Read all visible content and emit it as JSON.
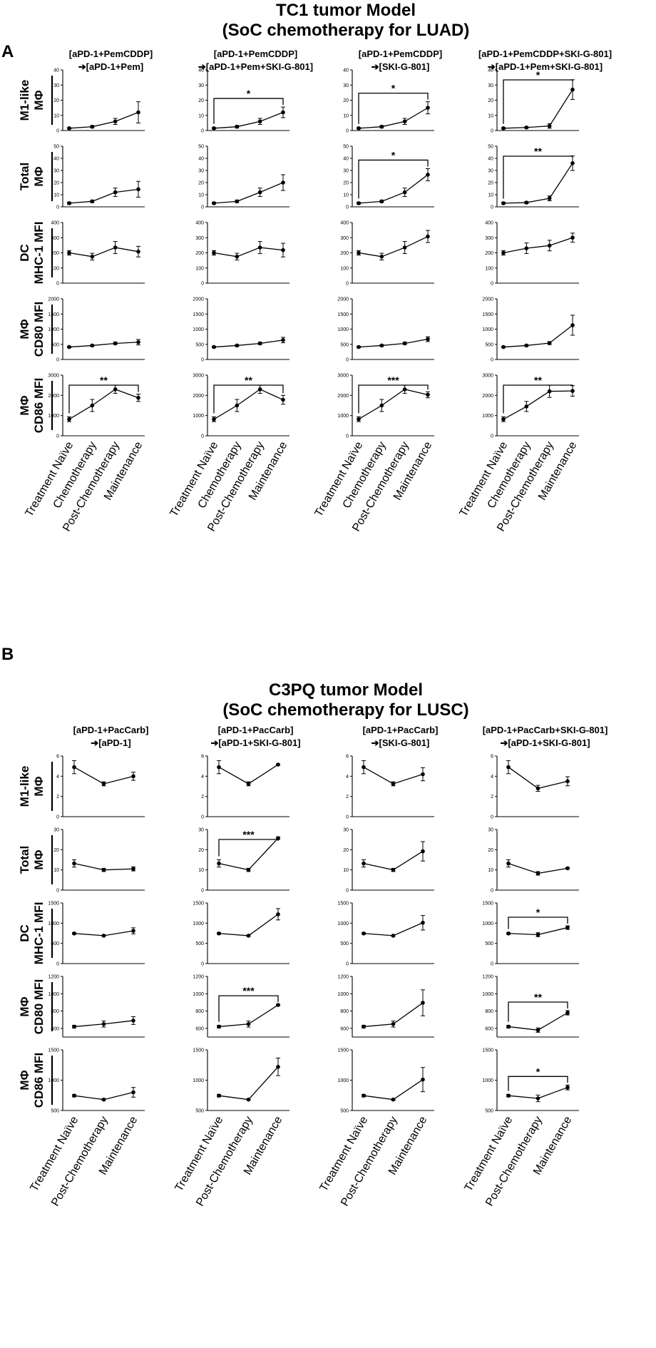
{
  "colors": {
    "line": "#000000",
    "background": "#ffffff"
  },
  "chart_data": [
    {
      "panel": "A",
      "title": "TC1 tumor Model",
      "subtitle": "(SoC chemotherapy for LUAD)",
      "type": "line",
      "categories": [
        "Treatment Naïve",
        "Chemotherapy",
        "Post-Chemotherapy",
        "Maintenance"
      ],
      "columns": [
        {
          "line1": "[aPD-1+PemCDDP]",
          "line2": "➔[aPD-1+Pem]"
        },
        {
          "line1": "[aPD-1+PemCDDP]",
          "line2": "➔[aPD-1+Pem+SKI-G-801]"
        },
        {
          "line1": "[aPD-1+PemCDDP]",
          "line2": "➔[SKI-G-801]"
        },
        {
          "line1": "[aPD-1+PemCDDP+SKI-G-801]",
          "line2": "➔[aPD-1+Pem+SKI-G-801]"
        }
      ],
      "rows": [
        {
          "ylabel1": "M1-like",
          "ylabel2": "MΦ",
          "ylim": [
            0,
            40
          ],
          "ticks": [
            "0",
            "10",
            "20",
            "30",
            "40"
          ],
          "series": [
            {
              "values": [
                1.5,
                2.5,
                6,
                12
              ],
              "errors": [
                0.5,
                0.8,
                2,
                7
              ],
              "sig": ""
            },
            {
              "values": [
                1.5,
                2.5,
                6,
                12
              ],
              "errors": [
                0.5,
                0.8,
                2,
                3.5
              ],
              "sig": "*"
            },
            {
              "values": [
                1.5,
                2.5,
                6,
                15
              ],
              "errors": [
                0.5,
                0.8,
                2,
                4
              ],
              "sig": "*"
            },
            {
              "values": [
                1.5,
                2,
                3,
                27
              ],
              "errors": [
                0.5,
                0.5,
                1.5,
                6.5
              ],
              "sig": "*"
            }
          ]
        },
        {
          "ylabel1": "Total",
          "ylabel2": "MΦ",
          "ylim": [
            0,
            50
          ],
          "ticks": [
            "0",
            "10",
            "20",
            "30",
            "40",
            "50"
          ],
          "series": [
            {
              "values": [
                3,
                4.5,
                12,
                14.5
              ],
              "errors": [
                0.8,
                1,
                3.5,
                6.5
              ],
              "sig": ""
            },
            {
              "values": [
                3,
                4.5,
                12,
                20
              ],
              "errors": [
                0.8,
                1,
                3.5,
                6.5
              ],
              "sig": ""
            },
            {
              "values": [
                3,
                4.5,
                12,
                26.5
              ],
              "errors": [
                0.8,
                1,
                3.5,
                5
              ],
              "sig": "*"
            },
            {
              "values": [
                3,
                3.5,
                7,
                36
              ],
              "errors": [
                0.8,
                0.8,
                2,
                6
              ],
              "sig": "**"
            }
          ]
        },
        {
          "ylabel1": "DC",
          "ylabel2": "MHC-1 MFI",
          "ylim": [
            0,
            400
          ],
          "ticks": [
            "0",
            "100",
            "200",
            "300",
            "400"
          ],
          "series": [
            {
              "values": [
                200,
                175,
                235,
                208
              ],
              "errors": [
                15,
                22,
                40,
                35
              ],
              "sig": ""
            },
            {
              "values": [
                200,
                175,
                235,
                218
              ],
              "errors": [
                15,
                22,
                40,
                45
              ],
              "sig": ""
            },
            {
              "values": [
                200,
                175,
                235,
                308
              ],
              "errors": [
                15,
                22,
                40,
                40
              ],
              "sig": ""
            },
            {
              "values": [
                200,
                230,
                248,
                300
              ],
              "errors": [
                15,
                35,
                35,
                30
              ],
              "sig": ""
            }
          ]
        },
        {
          "ylabel1": "MΦ",
          "ylabel2": "CD80 MFI",
          "ylim": [
            0,
            2000
          ],
          "ticks": [
            "0",
            "500",
            "1000",
            "1500",
            "2000"
          ],
          "series": [
            {
              "values": [
                410,
                460,
                530,
                570
              ],
              "errors": [
                25,
                30,
                40,
                90
              ],
              "sig": ""
            },
            {
              "values": [
                410,
                460,
                530,
                640
              ],
              "errors": [
                25,
                30,
                40,
                90
              ],
              "sig": ""
            },
            {
              "values": [
                410,
                460,
                530,
                670
              ],
              "errors": [
                25,
                30,
                40,
                80
              ],
              "sig": ""
            },
            {
              "values": [
                410,
                460,
                540,
                1130
              ],
              "errors": [
                25,
                30,
                50,
                330
              ],
              "sig": ""
            }
          ]
        },
        {
          "ylabel1": "MΦ",
          "ylabel2": "CD86 MFI",
          "ylim": [
            0,
            3000
          ],
          "ticks": [
            "0",
            "1000",
            "2000",
            "3000"
          ],
          "series": [
            {
              "values": [
                820,
                1500,
                2300,
                1880
              ],
              "errors": [
                120,
                300,
                200,
                180
              ],
              "sig": "**"
            },
            {
              "values": [
                820,
                1500,
                2300,
                1780
              ],
              "errors": [
                120,
                300,
                200,
                220
              ],
              "sig": "**"
            },
            {
              "values": [
                820,
                1500,
                2300,
                2030
              ],
              "errors": [
                120,
                300,
                200,
                150
              ],
              "sig": "***"
            },
            {
              "values": [
                820,
                1450,
                2200,
                2220
              ],
              "errors": [
                120,
                250,
                300,
                260
              ],
              "sig": "**"
            }
          ]
        }
      ]
    },
    {
      "panel": "B",
      "title": "C3PQ tumor Model",
      "subtitle": "(SoC chemotherapy for LUSC)",
      "type": "line",
      "categories": [
        "Treatment Naïve",
        "Post-Chemotherapy",
        "Maintenance"
      ],
      "columns": [
        {
          "line1": "[aPD-1+PacCarb]",
          "line2": "➔[aPD-1]"
        },
        {
          "line1": "[aPD-1+PacCarb]",
          "line2": "➔[aPD-1+SKI-G-801]"
        },
        {
          "line1": "[aPD-1+PacCarb]",
          "line2": "➔[SKI-G-801]"
        },
        {
          "line1": "[aPD-1+PacCarb+SKI-G-801]",
          "line2": "➔[aPD-1+SKI-G-801]"
        }
      ],
      "rows": [
        {
          "ylabel1": "M1-like",
          "ylabel2": "MΦ",
          "ylim": [
            0,
            6
          ],
          "ticks": [
            "0",
            "2",
            "4",
            "6"
          ],
          "series": [
            {
              "values": [
                4.9,
                3.25,
                4.0
              ],
              "errors": [
                0.65,
                0.2,
                0.4
              ],
              "sig": ""
            },
            {
              "values": [
                4.9,
                3.25,
                5.15
              ],
              "errors": [
                0.65,
                0.2,
                0.05
              ],
              "sig": ""
            },
            {
              "values": [
                4.9,
                3.25,
                4.2
              ],
              "errors": [
                0.65,
                0.2,
                0.65
              ],
              "sig": ""
            },
            {
              "values": [
                4.9,
                2.8,
                3.5
              ],
              "errors": [
                0.65,
                0.3,
                0.45
              ],
              "sig": ""
            }
          ]
        },
        {
          "ylabel1": "Total",
          "ylabel2": "MΦ",
          "ylim": [
            0,
            30
          ],
          "ticks": [
            "0",
            "10",
            "20",
            "30"
          ],
          "series": [
            {
              "values": [
                13.2,
                10,
                10.5
              ],
              "errors": [
                1.8,
                0.8,
                1.0
              ],
              "sig": ""
            },
            {
              "values": [
                13.2,
                10,
                25.7
              ],
              "errors": [
                1.8,
                0.8,
                0.6
              ],
              "sig": "***"
            },
            {
              "values": [
                13.2,
                10,
                19.2
              ],
              "errors": [
                1.8,
                0.8,
                4.8
              ],
              "sig": ""
            },
            {
              "values": [
                13.2,
                8.3,
                10.8
              ],
              "errors": [
                1.8,
                0.9,
                0.4
              ],
              "sig": ""
            }
          ]
        },
        {
          "ylabel1": "DC",
          "ylabel2": "MHC-1 MFI",
          "ylim": [
            0,
            1500
          ],
          "ticks": [
            "0",
            "500",
            "1000",
            "1500"
          ],
          "series": [
            {
              "values": [
                745,
                690,
                810
              ],
              "errors": [
                20,
                15,
                75
              ],
              "sig": ""
            },
            {
              "values": [
                745,
                690,
                1220
              ],
              "errors": [
                20,
                15,
                140
              ],
              "sig": ""
            },
            {
              "values": [
                745,
                690,
                1010
              ],
              "errors": [
                20,
                15,
                180
              ],
              "sig": ""
            },
            {
              "values": [
                745,
                715,
                890
              ],
              "errors": [
                20,
                50,
                45
              ],
              "sig": "*"
            }
          ]
        },
        {
          "ylabel1": "MΦ",
          "ylabel2": "CD80 MFI",
          "ylim": [
            500,
            1200
          ],
          "ticks": [
            "600",
            "800",
            "1000",
            "1200"
          ],
          "series": [
            {
              "values": [
                620,
                650,
                690
              ],
              "errors": [
                15,
                35,
                45
              ],
              "sig": ""
            },
            {
              "values": [
                620,
                650,
                870
              ],
              "errors": [
                15,
                35,
                8
              ],
              "sig": "***"
            },
            {
              "values": [
                620,
                650,
                895
              ],
              "errors": [
                15,
                35,
                150
              ],
              "sig": ""
            },
            {
              "values": [
                620,
                580,
                780
              ],
              "errors": [
                15,
                25,
                25
              ],
              "sig": "**"
            }
          ]
        },
        {
          "ylabel1": "MΦ",
          "ylabel2": "CD86 MFI",
          "ylim": [
            500,
            1500
          ],
          "ticks": [
            "500",
            "1000",
            "1500"
          ],
          "series": [
            {
              "values": [
                745,
                680,
                800
              ],
              "errors": [
                20,
                10,
                80
              ],
              "sig": ""
            },
            {
              "values": [
                745,
                680,
                1220
              ],
              "errors": [
                20,
                10,
                145
              ],
              "sig": ""
            },
            {
              "values": [
                745,
                680,
                1010
              ],
              "errors": [
                20,
                10,
                200
              ],
              "sig": ""
            },
            {
              "values": [
                745,
                700,
                880
              ],
              "errors": [
                20,
                55,
                40
              ],
              "sig": "*"
            }
          ]
        }
      ]
    }
  ]
}
